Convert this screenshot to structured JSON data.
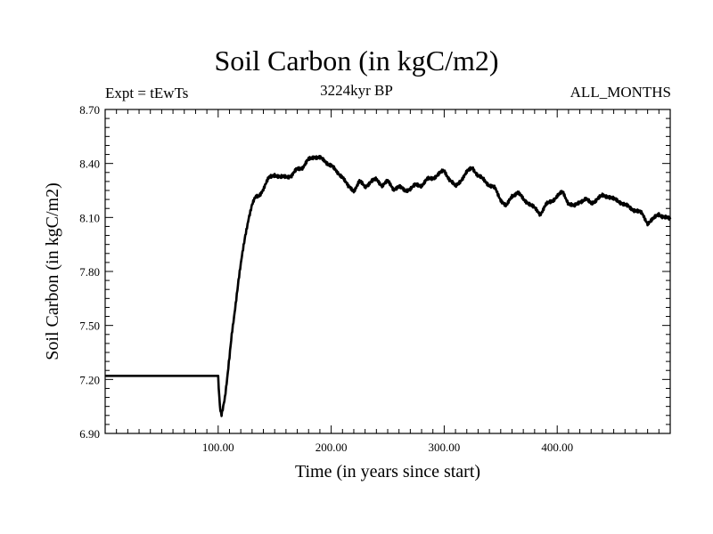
{
  "chart_data": {
    "type": "line",
    "title": "Soil Carbon (in kgC/m2)",
    "subtitle": "3224kyr BP",
    "left_label": "Expt = tEwTs",
    "right_label": "ALL_MONTHS",
    "xlabel": "Time (in years since start)",
    "ylabel": "Soil Carbon (in kgC/m2)",
    "xlim": [
      0,
      500
    ],
    "ylim": [
      6.9,
      8.7
    ],
    "xticks": [
      100,
      200,
      300,
      400
    ],
    "xtick_labels": [
      "100.00",
      "200.00",
      "300.00",
      "400.00"
    ],
    "yticks": [
      6.9,
      7.2,
      7.5,
      7.8,
      8.1,
      8.4,
      8.7
    ],
    "ytick_labels": [
      "6.90",
      "7.20",
      "7.50",
      "7.80",
      "8.10",
      "8.40",
      "8.70"
    ],
    "grid": false,
    "series": [
      {
        "name": "Soil Carbon",
        "x": [
          0,
          100,
          101,
          102,
          103,
          104,
          106,
          108,
          110,
          112,
          115,
          118,
          121,
          124,
          127,
          130,
          133,
          136,
          140,
          145,
          150,
          155,
          160,
          165,
          170,
          175,
          180,
          185,
          190,
          195,
          200,
          205,
          210,
          215,
          220,
          225,
          230,
          235,
          240,
          245,
          250,
          255,
          260,
          265,
          270,
          275,
          280,
          285,
          290,
          295,
          300,
          305,
          310,
          315,
          320,
          325,
          330,
          335,
          340,
          345,
          350,
          355,
          360,
          365,
          370,
          375,
          380,
          385,
          390,
          395,
          400,
          405,
          410,
          415,
          420,
          425,
          430,
          435,
          440,
          445,
          450,
          455,
          460,
          465,
          470,
          475,
          480,
          485,
          490,
          495,
          500
        ],
        "y": [
          7.22,
          7.22,
          7.1,
          7.03,
          7.01,
          7.04,
          7.1,
          7.2,
          7.32,
          7.45,
          7.6,
          7.75,
          7.88,
          8.0,
          8.1,
          8.17,
          8.21,
          8.22,
          8.26,
          8.32,
          8.34,
          8.32,
          8.33,
          8.33,
          8.37,
          8.38,
          8.42,
          8.44,
          8.43,
          8.41,
          8.39,
          8.35,
          8.33,
          8.27,
          8.25,
          8.3,
          8.27,
          8.3,
          8.31,
          8.28,
          8.3,
          8.26,
          8.27,
          8.25,
          8.26,
          8.28,
          8.28,
          8.31,
          8.32,
          8.34,
          8.36,
          8.31,
          8.27,
          8.31,
          8.35,
          8.38,
          8.33,
          8.31,
          8.28,
          8.26,
          8.2,
          8.16,
          8.22,
          8.24,
          8.2,
          8.18,
          8.15,
          8.12,
          8.17,
          8.19,
          8.22,
          8.24,
          8.18,
          8.16,
          8.19,
          8.2,
          8.18,
          8.2,
          8.22,
          8.22,
          8.2,
          8.19,
          8.17,
          8.15,
          8.14,
          8.12,
          8.07,
          8.09,
          8.12,
          8.1,
          8.09
        ]
      }
    ]
  }
}
